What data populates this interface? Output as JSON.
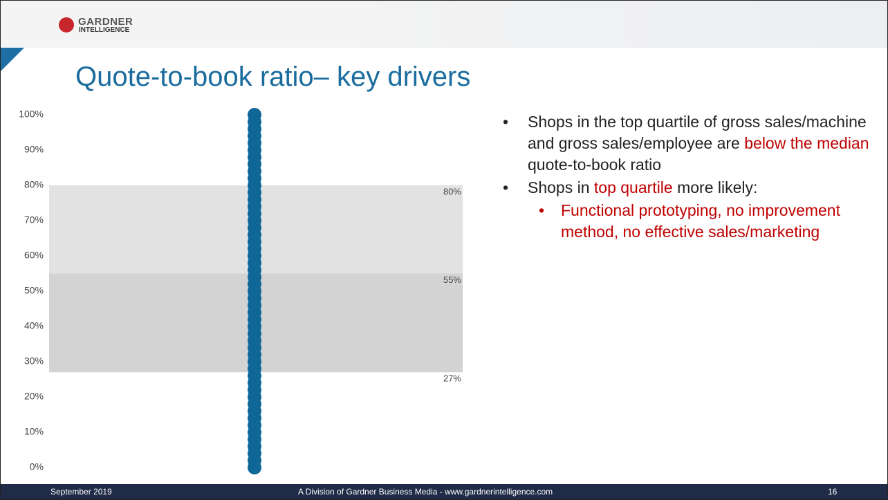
{
  "header": {
    "logo_top": "GARDNER",
    "logo_bottom": "INTELLIGENCE"
  },
  "title": "Quote-to-book ratio– key drivers",
  "bullets": [
    {
      "level": 1,
      "segments": [
        {
          "text": "Shops in the top quartile of gross sales/machine and gross sales/employee are "
        },
        {
          "text": "below the median",
          "highlight": true
        },
        {
          "text": " quote-to-book ratio"
        }
      ]
    },
    {
      "level": 1,
      "segments": [
        {
          "text": "Shops in "
        },
        {
          "text": "top quartile",
          "highlight": true
        },
        {
          "text": " more likely:"
        }
      ]
    },
    {
      "level": 2,
      "segments": [
        {
          "text": "Functional prototyping, no improvement method, no effective sales/marketing",
          "highlight": true
        }
      ]
    }
  ],
  "footer": {
    "date": "September 2019",
    "center": "A Division of Gardner Business Media - www.gardnerintelligence.com",
    "page": "16"
  },
  "chart_data": {
    "type": "strip",
    "color": "#0f6797",
    "values": [
      0,
      2,
      4,
      6,
      8,
      10,
      12,
      14,
      16,
      18,
      20,
      22,
      24,
      26,
      28,
      30,
      32,
      34,
      36,
      38,
      40,
      42,
      44,
      46,
      48,
      50,
      52,
      54,
      56,
      58,
      60,
      62,
      64,
      66,
      68,
      70,
      72,
      74,
      76,
      78,
      80,
      82,
      84,
      86,
      88,
      90,
      92,
      94,
      96,
      98,
      100
    ],
    "ylim": [
      0,
      100
    ],
    "yticks": [
      {
        "value": 0,
        "label": "0%"
      },
      {
        "value": 10,
        "label": "10%"
      },
      {
        "value": 20,
        "label": "20%"
      },
      {
        "value": 30,
        "label": "30%"
      },
      {
        "value": 40,
        "label": "40%"
      },
      {
        "value": 50,
        "label": "50%"
      },
      {
        "value": 60,
        "label": "60%"
      },
      {
        "value": 70,
        "label": "70%"
      },
      {
        "value": 80,
        "label": "80%"
      },
      {
        "value": 90,
        "label": "90%"
      },
      {
        "value": 100,
        "label": "100%"
      }
    ],
    "reference_lines": [
      {
        "value": 80,
        "label": "80%",
        "band_color": "#e2e2e2"
      },
      {
        "value": 55,
        "label": "55%",
        "band_color": "#d3d3d3"
      },
      {
        "value": 27,
        "label": "27%"
      }
    ]
  }
}
